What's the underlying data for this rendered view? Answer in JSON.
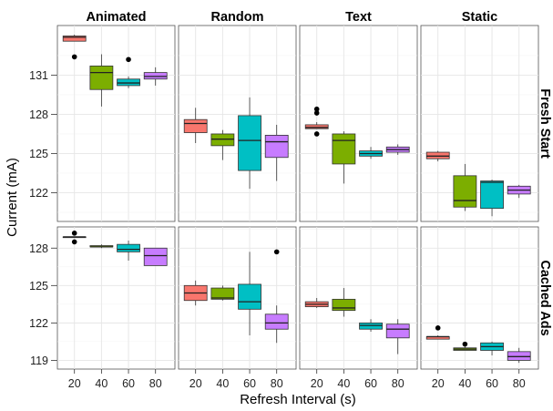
{
  "chart_data": {
    "type": "boxplot",
    "facet_columns": [
      "Animated",
      "Random",
      "Text",
      "Static"
    ],
    "facet_rows": [
      "Fresh Start",
      "Cached Ads"
    ],
    "xlabel": "Refresh Interval (s)",
    "ylabel": "Current (mA)",
    "x_categories": [
      "20",
      "40",
      "60",
      "80"
    ],
    "category_colors": [
      "#F8766D",
      "#7CAE00",
      "#00BFC4",
      "#C77CFF"
    ],
    "rows": [
      {
        "row": "Fresh Start",
        "y_ticks": [
          122,
          125,
          128,
          131
        ],
        "ylim": [
          119.8,
          134.8
        ],
        "panels": [
          {
            "column": "Animated",
            "boxes": [
              {
                "x": "20",
                "min": 133.6,
                "q1": 133.6,
                "median": 133.9,
                "q3": 134.0,
                "max": 134.1,
                "outliers": [
                  132.4
                ]
              },
              {
                "x": "40",
                "min": 128.6,
                "q1": 129.9,
                "median": 131.2,
                "q3": 131.7,
                "max": 132.6,
                "outliers": []
              },
              {
                "x": "60",
                "min": 130.0,
                "q1": 130.2,
                "median": 130.4,
                "q3": 130.7,
                "max": 130.9,
                "outliers": [
                  132.2
                ]
              },
              {
                "x": "80",
                "min": 130.2,
                "q1": 130.7,
                "median": 130.9,
                "q3": 131.2,
                "max": 131.6,
                "outliers": []
              }
            ]
          },
          {
            "column": "Random",
            "boxes": [
              {
                "x": "20",
                "min": 125.8,
                "q1": 126.6,
                "median": 127.3,
                "q3": 127.6,
                "max": 128.5,
                "outliers": []
              },
              {
                "x": "40",
                "min": 124.5,
                "q1": 125.6,
                "median": 126.1,
                "q3": 126.5,
                "max": 126.8,
                "outliers": []
              },
              {
                "x": "60",
                "min": 122.3,
                "q1": 123.7,
                "median": 126.0,
                "q3": 127.9,
                "max": 129.3,
                "outliers": []
              },
              {
                "x": "80",
                "min": 122.9,
                "q1": 124.7,
                "median": 125.9,
                "q3": 126.4,
                "max": 127.2,
                "outliers": []
              }
            ]
          },
          {
            "column": "Text",
            "boxes": [
              {
                "x": "20",
                "min": 126.9,
                "q1": 126.9,
                "median": 127.0,
                "q3": 127.2,
                "max": 127.4,
                "outliers": [
                  128.4,
                  128.1,
                  126.5
                ]
              },
              {
                "x": "40",
                "min": 122.7,
                "q1": 124.2,
                "median": 126.0,
                "q3": 126.5,
                "max": 126.7,
                "outliers": []
              },
              {
                "x": "60",
                "min": 124.6,
                "q1": 124.8,
                "median": 125.0,
                "q3": 125.2,
                "max": 125.5,
                "outliers": []
              },
              {
                "x": "80",
                "min": 124.9,
                "q1": 125.1,
                "median": 125.3,
                "q3": 125.5,
                "max": 125.7,
                "outliers": []
              }
            ]
          },
          {
            "column": "Static",
            "boxes": [
              {
                "x": "20",
                "min": 124.4,
                "q1": 124.6,
                "median": 124.8,
                "q3": 125.1,
                "max": 125.2,
                "outliers": []
              },
              {
                "x": "40",
                "min": 120.6,
                "q1": 120.9,
                "median": 121.4,
                "q3": 123.3,
                "max": 124.2,
                "outliers": []
              },
              {
                "x": "60",
                "min": 120.2,
                "q1": 120.8,
                "median": 122.8,
                "q3": 122.9,
                "max": 123.0,
                "outliers": []
              },
              {
                "x": "80",
                "min": 121.6,
                "q1": 121.9,
                "median": 122.2,
                "q3": 122.5,
                "max": 122.6,
                "outliers": []
              }
            ]
          }
        ]
      },
      {
        "row": "Cached Ads",
        "y_ticks": [
          119,
          122,
          125,
          128
        ],
        "ylim": [
          118.3,
          129.7
        ],
        "panels": [
          {
            "column": "Animated",
            "boxes": [
              {
                "x": "20",
                "min": 128.9,
                "q1": 128.9,
                "median": 128.9,
                "q3": 128.9,
                "max": 128.9,
                "outliers": [
                  129.2,
                  128.5
                ]
              },
              {
                "x": "40",
                "min": 128.0,
                "q1": 128.1,
                "median": 128.1,
                "q3": 128.2,
                "max": 128.3,
                "outliers": []
              },
              {
                "x": "60",
                "min": 127.0,
                "q1": 127.7,
                "median": 127.9,
                "q3": 128.3,
                "max": 128.6,
                "outliers": []
              },
              {
                "x": "80",
                "min": 126.6,
                "q1": 126.6,
                "median": 127.4,
                "q3": 128.0,
                "max": 128.0,
                "outliers": []
              }
            ]
          },
          {
            "column": "Random",
            "boxes": [
              {
                "x": "20",
                "min": 123.4,
                "q1": 123.8,
                "median": 124.4,
                "q3": 125.0,
                "max": 125.4,
                "outliers": []
              },
              {
                "x": "40",
                "min": 123.8,
                "q1": 123.9,
                "median": 124.0,
                "q3": 124.8,
                "max": 125.0,
                "outliers": []
              },
              {
                "x": "60",
                "min": 121.0,
                "q1": 123.1,
                "median": 123.7,
                "q3": 125.1,
                "max": 127.7,
                "outliers": []
              },
              {
                "x": "80",
                "min": 120.4,
                "q1": 121.5,
                "median": 122.0,
                "q3": 122.7,
                "max": 123.4,
                "outliers": [
                  127.7
                ]
              }
            ]
          },
          {
            "column": "Text",
            "boxes": [
              {
                "x": "20",
                "min": 123.2,
                "q1": 123.3,
                "median": 123.5,
                "q3": 123.7,
                "max": 124.0,
                "outliers": []
              },
              {
                "x": "40",
                "min": 122.5,
                "q1": 123.0,
                "median": 123.2,
                "q3": 123.9,
                "max": 124.8,
                "outliers": []
              },
              {
                "x": "60",
                "min": 121.3,
                "q1": 121.5,
                "median": 121.8,
                "q3": 122.0,
                "max": 122.3,
                "outliers": []
              },
              {
                "x": "80",
                "min": 119.5,
                "q1": 120.8,
                "median": 121.5,
                "q3": 121.9,
                "max": 122.3,
                "outliers": []
              }
            ]
          },
          {
            "column": "Static",
            "boxes": [
              {
                "x": "20",
                "min": 120.7,
                "q1": 120.7,
                "median": 120.9,
                "q3": 120.9,
                "max": 121.0,
                "outliers": [
                  121.6
                ]
              },
              {
                "x": "40",
                "min": 119.8,
                "q1": 119.8,
                "median": 119.9,
                "q3": 120.0,
                "max": 120.1,
                "outliers": [
                  120.3
                ]
              },
              {
                "x": "60",
                "min": 119.4,
                "q1": 119.8,
                "median": 120.1,
                "q3": 120.4,
                "max": 120.5,
                "outliers": []
              },
              {
                "x": "80",
                "min": 118.8,
                "q1": 119.0,
                "median": 119.3,
                "q3": 119.7,
                "max": 120.0,
                "outliers": []
              }
            ]
          }
        ]
      }
    ],
    "grid": true,
    "legend": "none"
  }
}
